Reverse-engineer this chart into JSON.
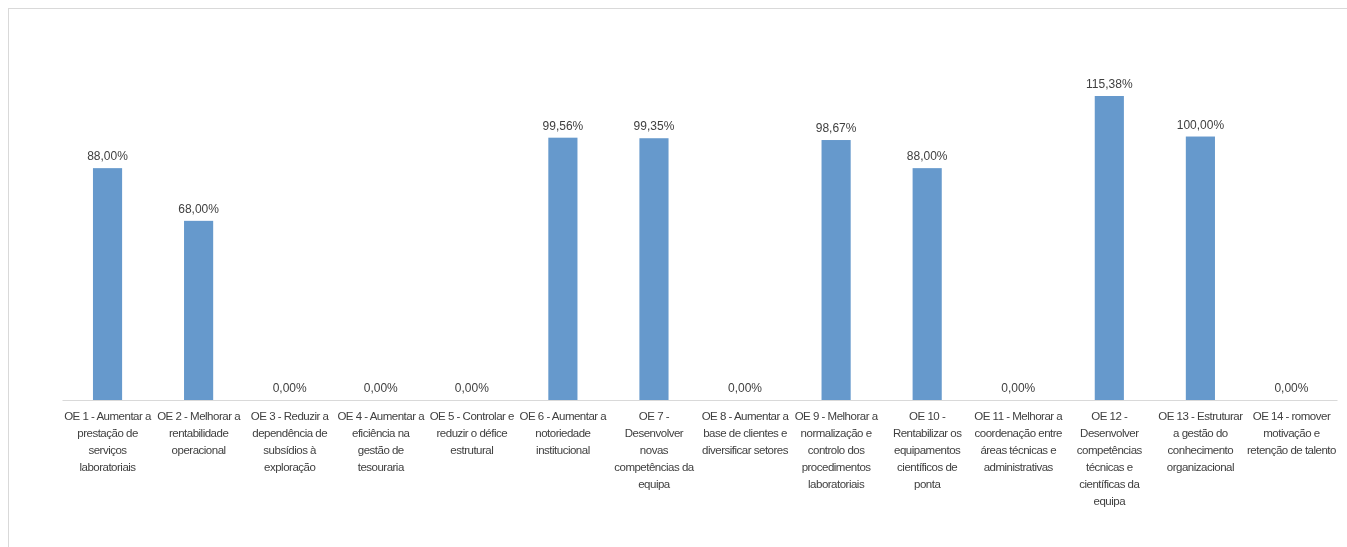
{
  "chart_data": {
    "type": "bar",
    "categories": [
      "OE 1 - Aumentar a prestação de serviços laboratoriais",
      "OE 2 - Melhorar a rentabilidade operacional",
      "OE 3 - Reduzir a dependência de subsídios à exploração",
      "OE 4 - Aumentar a eficiência na gestão de tesouraria",
      "OE 5 - Controlar e reduzir o défice estrutural",
      "OE 6 - Aumentar a notoriedade institucional",
      "OE 7 - Desenvolver novas competências da equipa",
      "OE 8 - Aumentar a base de clientes e diversificar setores",
      "OE 9 - Melhorar a normalização e controlo dos procedimentos laboratoriais",
      "OE 10 - Rentabilizar os equipamentos científicos de ponta",
      "OE 11 - Melhorar a coordenação entre áreas técnicas e administrativas",
      "OE 12 - Desenvolver competências técnicas e científicas da equipa",
      "OE 13 - Estruturar a gestão do conhecimento organizacional",
      "OE 14 - romover motivação e retenção de talento"
    ],
    "values": [
      88,
      68,
      0,
      0,
      0,
      99.56,
      99.35,
      0,
      98.67,
      88,
      0,
      115.38,
      100,
      0
    ],
    "value_labels": [
      "88,00%",
      "68,00%",
      "0,00%",
      "0,00%",
      "0,00%",
      "99,56%",
      "99,35%",
      "0,00%",
      "98,67%",
      "88,00%",
      "0,00%",
      "115,38%",
      "100,00%",
      "0,00%"
    ],
    "color": "#6699cc",
    "tick_labels": "x"
  }
}
